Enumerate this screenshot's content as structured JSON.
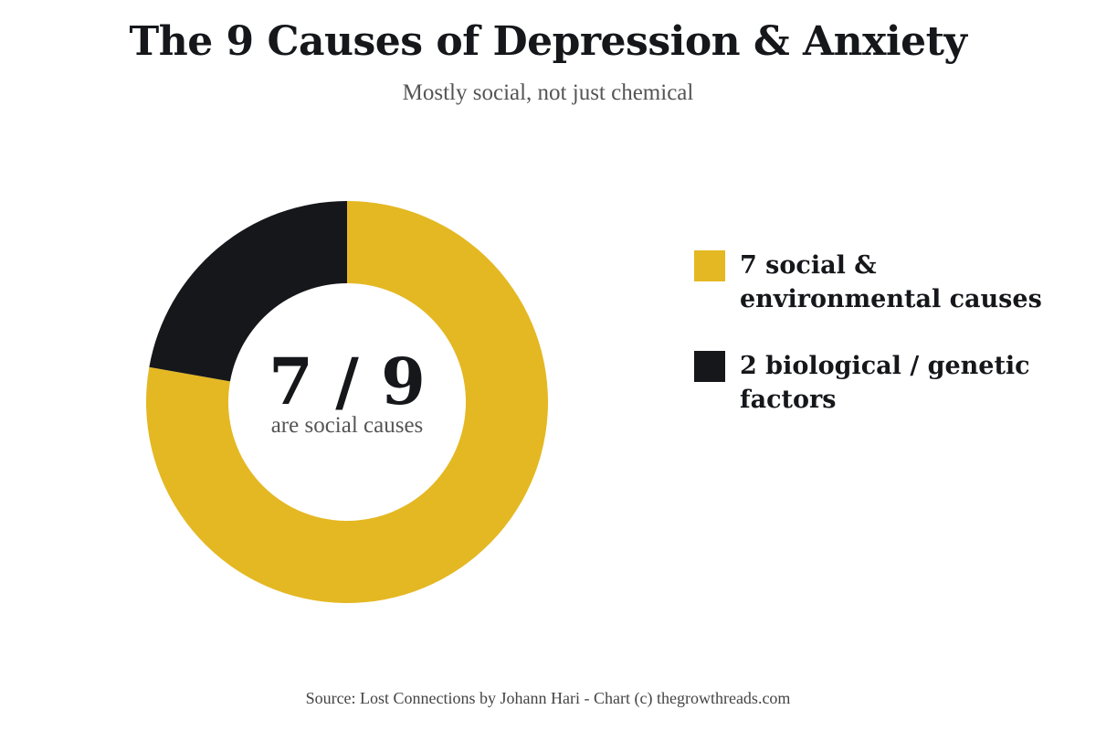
{
  "title": "The 9 Causes of Depression & Anxiety",
  "subtitle": "Mostly social, not just chemical",
  "center": {
    "value": "7 / 9",
    "caption": "are social causes"
  },
  "source": "Source: Lost Connections by Johann Hari - Chart (c) thegrowthreads.com",
  "colors": {
    "social": "#e4b823",
    "biological": "#16171b",
    "background": "#ffffff"
  },
  "chart_data": {
    "type": "pie",
    "variant": "donut",
    "title": "The 9 Causes of Depression & Anxiety",
    "subtitle": "Mostly social, not just chemical",
    "legend_position": "right",
    "slices": [
      {
        "label": "7 social & environmental causes",
        "value": 7,
        "color": "#e4b823"
      },
      {
        "label": "2 biological / genetic factors",
        "value": 2,
        "color": "#16171b"
      }
    ],
    "total": 9,
    "center_label": "7 / 9",
    "center_caption": "are social causes"
  }
}
